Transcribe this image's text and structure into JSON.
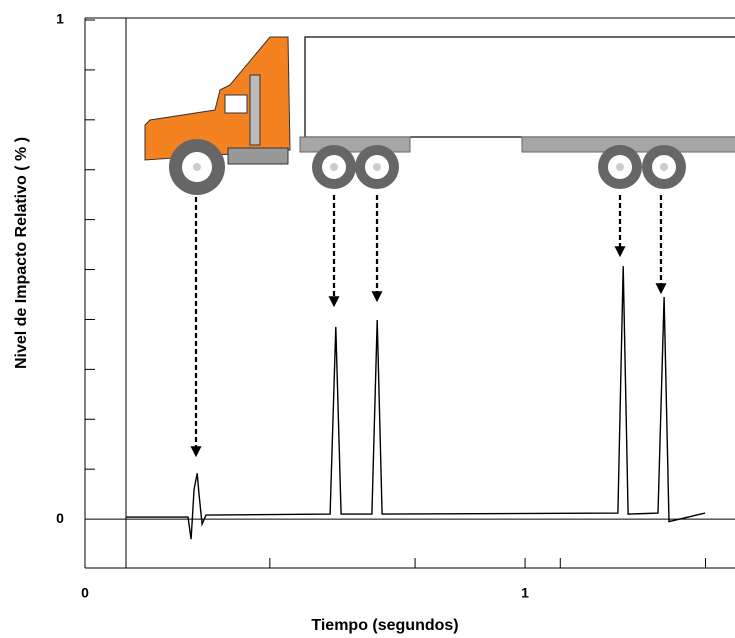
{
  "chart_data": {
    "type": "line",
    "x_label": "Tiempo (segundos)",
    "y_label": "Nivel de Impacto Relativo ( % )",
    "xlim": [
      0,
      1.477
    ],
    "ylim": [
      -0.1,
      1.0
    ],
    "xticks": [
      0,
      1
    ],
    "yticks": [
      0,
      1
    ],
    "x_minor_ticks": [
      0.42,
      0.75,
      1.08,
      1.41
    ],
    "y_minor_ticks": [
      0.1,
      0.2,
      0.3,
      0.4,
      0.5,
      0.6,
      0.7,
      0.8,
      0.9
    ],
    "series": [
      {
        "color": "#000000",
        "x": [
          0.093,
          0.234,
          0.241,
          0.248,
          0.255,
          0.259,
          0.266,
          0.275,
          0.557,
          0.57,
          0.582,
          0.652,
          0.664,
          0.675,
          1.211,
          1.223,
          1.234,
          1.302,
          1.316,
          1.327,
          1.409
        ],
        "values": [
          0.004,
          0.004,
          -0.04,
          0.06,
          0.092,
          0.05,
          -0.01,
          0.008,
          0.01,
          0.385,
          0.01,
          0.01,
          0.399,
          0.01,
          0.012,
          0.507,
          0.01,
          0.012,
          0.445,
          -0.005,
          0.012
        ]
      }
    ]
  }
}
